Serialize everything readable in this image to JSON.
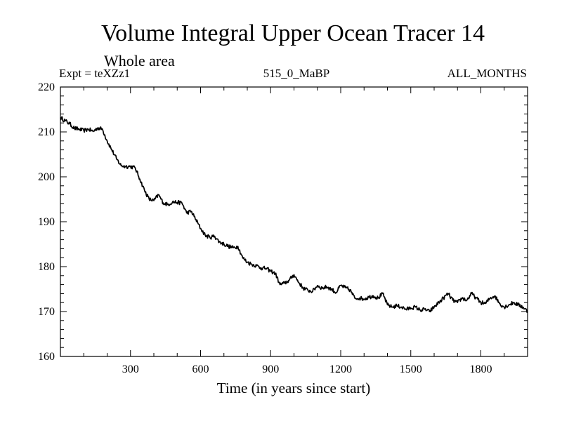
{
  "chart_data": {
    "type": "line",
    "title": "Volume Integral Upper Ocean Tracer 14",
    "subtitle": "Whole area",
    "experiment": "Expt = teXZz1",
    "run_label": "515_0_MaBP",
    "months_label": "ALL_MONTHS",
    "xlabel": "Time (in years since start)",
    "ylabel": "",
    "xlim": [
      0,
      2000
    ],
    "ylim": [
      160,
      220
    ],
    "xticks": [
      300,
      600,
      900,
      1200,
      1500,
      1800
    ],
    "yticks": [
      160,
      170,
      180,
      190,
      200,
      210,
      220
    ],
    "series": [
      {
        "name": "Tracer 14",
        "color": "#000000",
        "x": [
          0,
          20,
          40,
          60,
          80,
          100,
          120,
          140,
          160,
          180,
          200,
          220,
          240,
          260,
          280,
          300,
          320,
          340,
          360,
          380,
          400,
          420,
          440,
          460,
          480,
          500,
          520,
          540,
          560,
          580,
          600,
          620,
          640,
          660,
          680,
          700,
          720,
          740,
          760,
          780,
          800,
          820,
          840,
          860,
          880,
          900,
          920,
          940,
          960,
          980,
          1000,
          1020,
          1040,
          1060,
          1080,
          1100,
          1120,
          1140,
          1160,
          1180,
          1200,
          1220,
          1240,
          1260,
          1280,
          1300,
          1320,
          1340,
          1360,
          1380,
          1400,
          1420,
          1440,
          1460,
          1480,
          1500,
          1520,
          1540,
          1560,
          1580,
          1600,
          1620,
          1640,
          1660,
          1680,
          1700,
          1720,
          1740,
          1760,
          1780,
          1800,
          1820,
          1840,
          1860,
          1880,
          1900,
          1920,
          1940,
          1960,
          1980,
          2000
        ],
        "y": [
          213.2,
          212.5,
          211.8,
          210.8,
          210.6,
          210.3,
          210.6,
          210.1,
          210.9,
          210.6,
          208.0,
          206.0,
          204.0,
          202.5,
          202.3,
          202.3,
          202.0,
          199.5,
          197.0,
          195.0,
          194.7,
          196.0,
          194.2,
          193.8,
          194.4,
          194.3,
          194.2,
          192.0,
          192.3,
          190.5,
          188.5,
          187.0,
          186.5,
          186.8,
          185.5,
          185.0,
          184.5,
          184.2,
          184.5,
          182.0,
          181.0,
          180.5,
          180.2,
          179.7,
          179.6,
          179.0,
          178.5,
          176.0,
          176.3,
          177.0,
          178.2,
          176.5,
          175.2,
          174.7,
          174.5,
          175.8,
          175.2,
          175.5,
          175.0,
          174.2,
          175.8,
          175.3,
          174.8,
          173.0,
          173.0,
          172.8,
          173.2,
          173.5,
          173.0,
          174.0,
          171.5,
          171.0,
          171.3,
          171.0,
          170.5,
          170.8,
          171.0,
          170.3,
          170.5,
          170.0,
          171.0,
          172.0,
          173.0,
          174.0,
          172.5,
          172.0,
          173.0,
          172.5,
          174.0,
          173.0,
          172.0,
          171.8,
          173.0,
          173.5,
          171.8,
          171.0,
          171.5,
          172.0,
          171.5,
          171.0,
          170.0
        ]
      }
    ],
    "grid": false,
    "legend": "none"
  }
}
